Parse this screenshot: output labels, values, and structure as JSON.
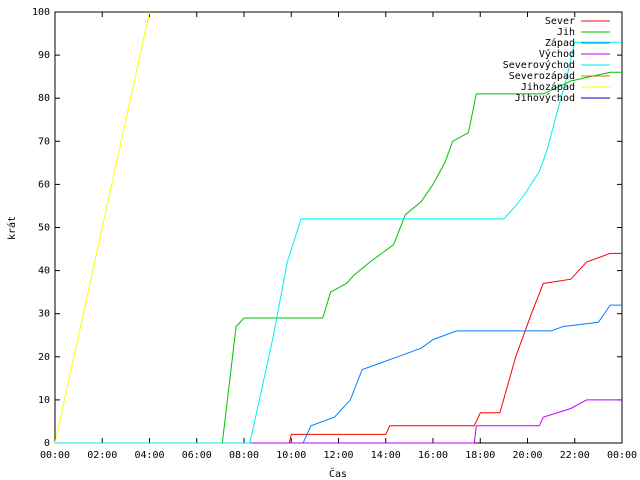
{
  "chart_data": {
    "type": "line",
    "title": "",
    "xlabel": "Čas",
    "ylabel": "krát",
    "xlim": [
      "00:00",
      "24:00"
    ],
    "ylim": [
      0,
      100
    ],
    "x_tick_labels": [
      "00:00",
      "02:00",
      "04:00",
      "06:00",
      "08:00",
      "10:00",
      "12:00",
      "14:00",
      "16:00",
      "18:00",
      "20:00",
      "22:00",
      "00:00"
    ],
    "y_tick_labels": [
      "0",
      "10",
      "20",
      "30",
      "40",
      "50",
      "60",
      "70",
      "80",
      "90",
      "100"
    ],
    "grid": false,
    "legend_position": "top-right",
    "series": [
      {
        "name": "Sever",
        "color": "#ff0000",
        "points": [
          [
            "00:00",
            0
          ],
          [
            "09:55",
            0
          ],
          [
            "10:00",
            2
          ],
          [
            "14:00",
            2
          ],
          [
            "14:10",
            4
          ],
          [
            "17:45",
            4
          ],
          [
            "18:00",
            7
          ],
          [
            "18:50",
            7
          ],
          [
            "19:30",
            20
          ],
          [
            "20:10",
            30
          ],
          [
            "20:40",
            37
          ],
          [
            "21:50",
            38
          ],
          [
            "22:30",
            42
          ],
          [
            "23:30",
            44
          ],
          [
            "24:00",
            44
          ]
        ]
      },
      {
        "name": "Jih",
        "color": "#00c000",
        "points": [
          [
            "00:00",
            0
          ],
          [
            "07:05",
            0
          ],
          [
            "07:40",
            27
          ],
          [
            "08:00",
            29
          ],
          [
            "11:20",
            29
          ],
          [
            "11:40",
            35
          ],
          [
            "12:20",
            37
          ],
          [
            "12:40",
            39
          ],
          [
            "13:20",
            42
          ],
          [
            "14:20",
            46
          ],
          [
            "14:50",
            53
          ],
          [
            "15:30",
            56
          ],
          [
            "16:00",
            60
          ],
          [
            "16:30",
            65
          ],
          [
            "16:50",
            70
          ],
          [
            "17:30",
            72
          ],
          [
            "17:50",
            81
          ],
          [
            "20:40",
            81
          ],
          [
            "21:50",
            84
          ],
          [
            "23:30",
            86
          ],
          [
            "24:00",
            86
          ]
        ]
      },
      {
        "name": "Západ",
        "color": "#0080ff",
        "points": [
          [
            "00:00",
            0
          ],
          [
            "10:30",
            0
          ],
          [
            "10:50",
            4
          ],
          [
            "11:50",
            6
          ],
          [
            "12:30",
            10
          ],
          [
            "13:00",
            17
          ],
          [
            "13:30",
            18
          ],
          [
            "14:30",
            20
          ],
          [
            "15:30",
            22
          ],
          [
            "16:00",
            24
          ],
          [
            "17:00",
            26
          ],
          [
            "21:00",
            26
          ],
          [
            "21:30",
            27
          ],
          [
            "23:00",
            28
          ],
          [
            "23:30",
            32
          ],
          [
            "24:00",
            32
          ]
        ]
      },
      {
        "name": "Východ",
        "color": "#c000ff",
        "points": [
          [
            "00:00",
            0
          ],
          [
            "17:45",
            0
          ],
          [
            "17:50",
            4
          ],
          [
            "20:30",
            4
          ],
          [
            "20:40",
            6
          ],
          [
            "21:50",
            8
          ],
          [
            "22:30",
            10
          ],
          [
            "24:00",
            10
          ]
        ]
      },
      {
        "name": "Severovýchod",
        "color": "#00eeee",
        "points": [
          [
            "00:00",
            0
          ],
          [
            "08:15",
            0
          ],
          [
            "09:15",
            25
          ],
          [
            "09:50",
            42
          ],
          [
            "10:25",
            52
          ],
          [
            "19:00",
            52
          ],
          [
            "19:30",
            55
          ],
          [
            "19:55",
            58
          ],
          [
            "20:30",
            63
          ],
          [
            "20:50",
            68
          ],
          [
            "21:10",
            75
          ],
          [
            "21:40",
            85
          ],
          [
            "22:00",
            93
          ],
          [
            "24:00",
            93
          ]
        ]
      },
      {
        "name": "Severozápad",
        "color": "#c08000",
        "points": []
      },
      {
        "name": "Jihozápad",
        "color": "#ffff00",
        "points": [
          [
            "00:00",
            0
          ],
          [
            "04:00",
            100
          ]
        ]
      },
      {
        "name": "Jihovýchod",
        "color": "#0000c0",
        "points": []
      }
    ]
  }
}
